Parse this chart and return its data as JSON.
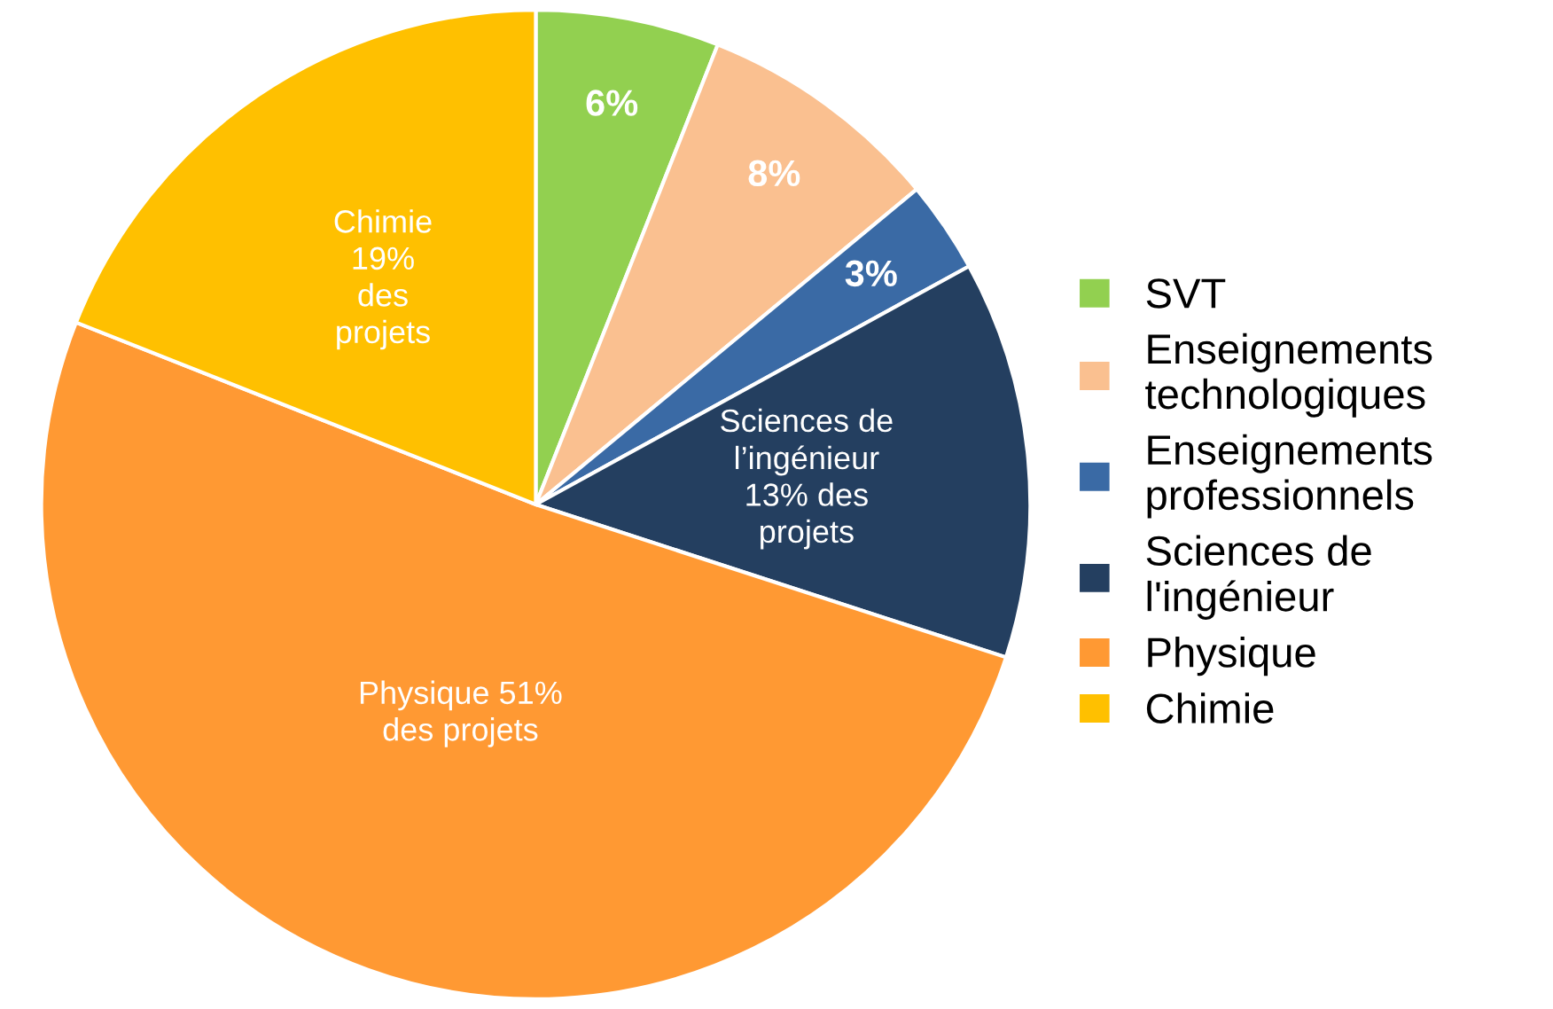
{
  "chart_data": {
    "type": "pie",
    "categories": [
      "SVT",
      "Enseignements\ntechnologiques",
      "Enseignements\nprofessionnels",
      "Sciences de\nl'ingénieur",
      "Physique",
      "Chimie"
    ],
    "values": [
      6,
      8,
      3,
      13,
      51,
      19
    ],
    "colors": [
      "#92d050",
      "#fac090",
      "#3a6aa5",
      "#243f60",
      "#ff9933",
      "#ffc000"
    ],
    "value_labels": [
      "6%",
      "8%",
      "3%",
      "Sciences de\nl’ingénieur\n13% des\nprojets",
      "Physique 51%\ndes projets",
      "Chimie\n19%\ndes\nprojets"
    ],
    "legend": "right"
  }
}
